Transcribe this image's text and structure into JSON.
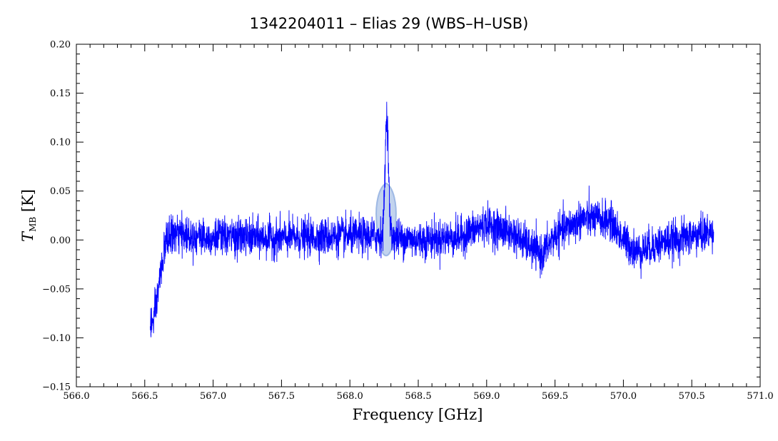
{
  "chart_data": {
    "type": "line",
    "title": "1342204011 – Elias 29 (WBS–H–USB)",
    "xlabel": "Frequency [GHz]",
    "ylabel_main": "T",
    "ylabel_sub": "MB",
    "ylabel_unit": " [K]",
    "xlim": [
      566.0,
      571.0
    ],
    "ylim": [
      -0.15,
      0.2
    ],
    "x_ticks": [
      566.0,
      566.5,
      567.0,
      567.5,
      568.0,
      568.5,
      569.0,
      569.5,
      570.0,
      570.5,
      571.0
    ],
    "x_tick_labels": [
      "566.0",
      "566.5",
      "567.0",
      "567.5",
      "568.0",
      "568.5",
      "569.0",
      "569.5",
      "570.0",
      "570.5",
      "571.0"
    ],
    "y_ticks": [
      -0.15,
      -0.1,
      -0.05,
      0.0,
      0.05,
      0.1,
      0.15,
      0.2
    ],
    "y_tick_labels": [
      "−0.15",
      "−0.10",
      "−0.05",
      "0.00",
      "0.05",
      "0.10",
      "0.15",
      "0.20"
    ],
    "grid": false,
    "legend": "none",
    "series": [
      {
        "color": "#0000ff",
        "x_start": 566.54,
        "x_end": 570.66,
        "baseline_points": [
          [
            566.54,
            -0.085
          ],
          [
            566.56,
            -0.085
          ],
          [
            566.58,
            -0.072
          ],
          [
            566.6,
            -0.05
          ],
          [
            566.62,
            -0.03
          ],
          [
            566.64,
            -0.012
          ],
          [
            566.66,
            0.0
          ],
          [
            566.7,
            0.006
          ],
          [
            567.0,
            0.003
          ],
          [
            567.5,
            0.002
          ],
          [
            568.0,
            0.004
          ],
          [
            568.25,
            0.004
          ],
          [
            568.5,
            0.0
          ],
          [
            568.8,
            0.003
          ],
          [
            569.0,
            0.016
          ],
          [
            569.2,
            0.006
          ],
          [
            569.4,
            -0.016
          ],
          [
            569.5,
            0.005
          ],
          [
            569.7,
            0.022
          ],
          [
            569.9,
            0.02
          ],
          [
            570.0,
            0.0
          ],
          [
            570.1,
            -0.012
          ],
          [
            570.3,
            -0.002
          ],
          [
            570.5,
            0.004
          ],
          [
            570.66,
            0.008
          ]
        ],
        "noise_sigma": 0.0095,
        "line_center": 568.27,
        "line_peak": 0.125,
        "line_width": 0.012
      }
    ],
    "annotations": [
      {
        "shape": "shaded-lobe",
        "x_center": 568.265,
        "y_top": 0.058,
        "y_bottom": -0.016,
        "half_width": 0.075,
        "color": "#8faee0"
      }
    ]
  }
}
